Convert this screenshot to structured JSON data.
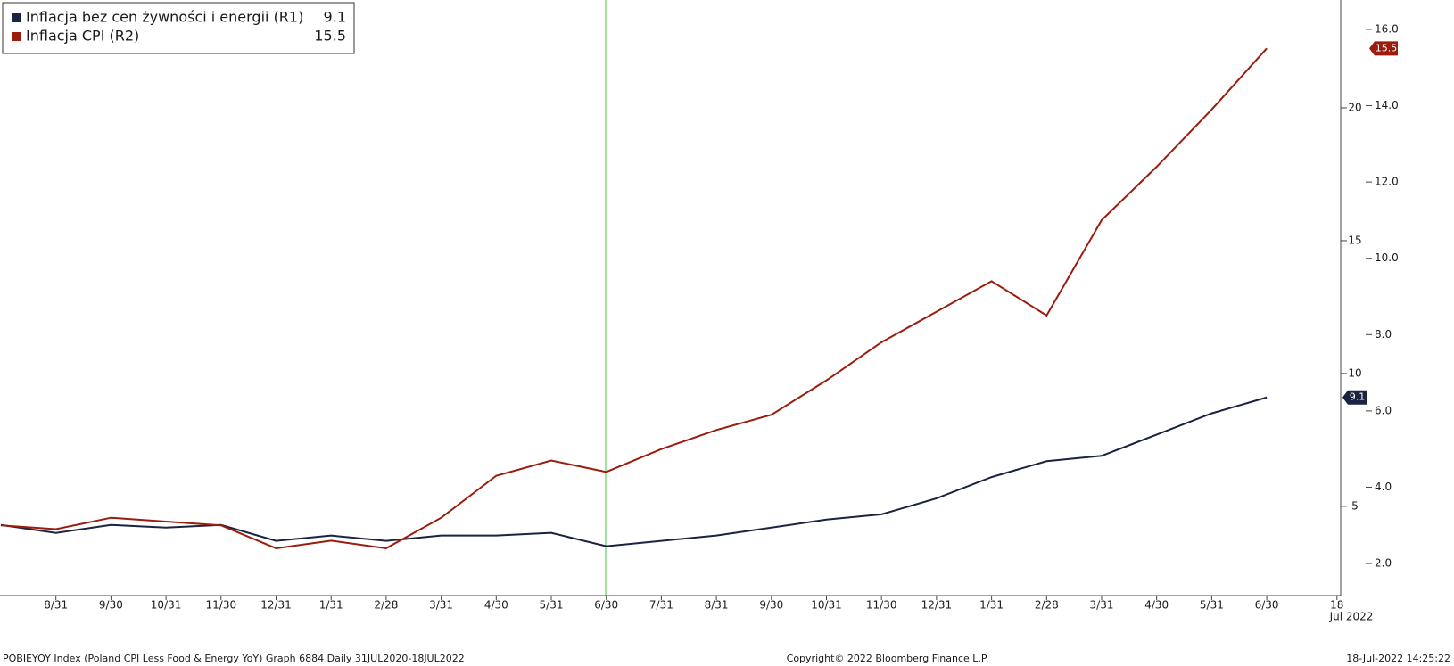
{
  "chart_data": {
    "type": "line",
    "categories": [
      null,
      "8/31",
      "9/30",
      "10/31",
      "11/30",
      "12/31",
      "1/31",
      "2/28",
      "3/31",
      "4/30",
      "5/31",
      "6/30",
      "7/31",
      "8/31",
      "9/30",
      "10/31",
      "11/30",
      "12/31",
      "1/31",
      "2/28",
      "3/31",
      "4/30",
      "5/31",
      "6/30"
    ],
    "last_tick": "18",
    "year_label": "Jul 2022",
    "series": [
      {
        "name": "Inflacja bez cen żywności i energii (R1)",
        "color": "#1a2440",
        "axis": "y",
        "values": [
          4.3,
          4.0,
          4.3,
          4.2,
          4.3,
          3.7,
          3.9,
          3.7,
          3.9,
          3.9,
          4.0,
          3.5,
          3.7,
          3.9,
          4.2,
          4.5,
          4.7,
          5.3,
          6.1,
          6.7,
          6.9,
          7.7,
          8.5,
          9.1
        ]
      },
      {
        "name": "Inflacja CPI  (R2)",
        "color": "#9b1c0c",
        "axis": "y2",
        "values": [
          3.0,
          2.9,
          3.2,
          3.1,
          3.0,
          2.4,
          2.6,
          2.4,
          3.2,
          4.3,
          4.7,
          4.4,
          5.0,
          5.5,
          5.9,
          6.8,
          7.8,
          8.6,
          9.4,
          8.5,
          11.0,
          12.4,
          13.9,
          15.5
        ]
      }
    ],
    "ylim": [
      1.64,
      24.06
    ],
    "yticks": [
      5,
      10,
      15,
      20
    ],
    "y2lim": [
      1.16,
      16.77
    ],
    "y2ticks": [
      {
        "value": 2,
        "label": "2.0"
      },
      {
        "value": 4,
        "label": "4.0"
      },
      {
        "value": 6,
        "label": "6.0"
      },
      {
        "value": 8,
        "label": "8.0"
      },
      {
        "value": 10,
        "label": "10.0"
      },
      {
        "value": 12,
        "label": "12.0"
      },
      {
        "value": 14,
        "label": "14.0"
      },
      {
        "value": 16,
        "label": "16.0"
      }
    ],
    "footer": {
      "left": "POBIEYOY Index (Poland CPI Less Food & Energy YoY) Graph 6884  Daily 31JUL2020-18JUL2022",
      "center": "Copyright© 2022 Bloomberg Finance L.P.",
      "right": "18-Jul-2022 14:25:22"
    }
  }
}
